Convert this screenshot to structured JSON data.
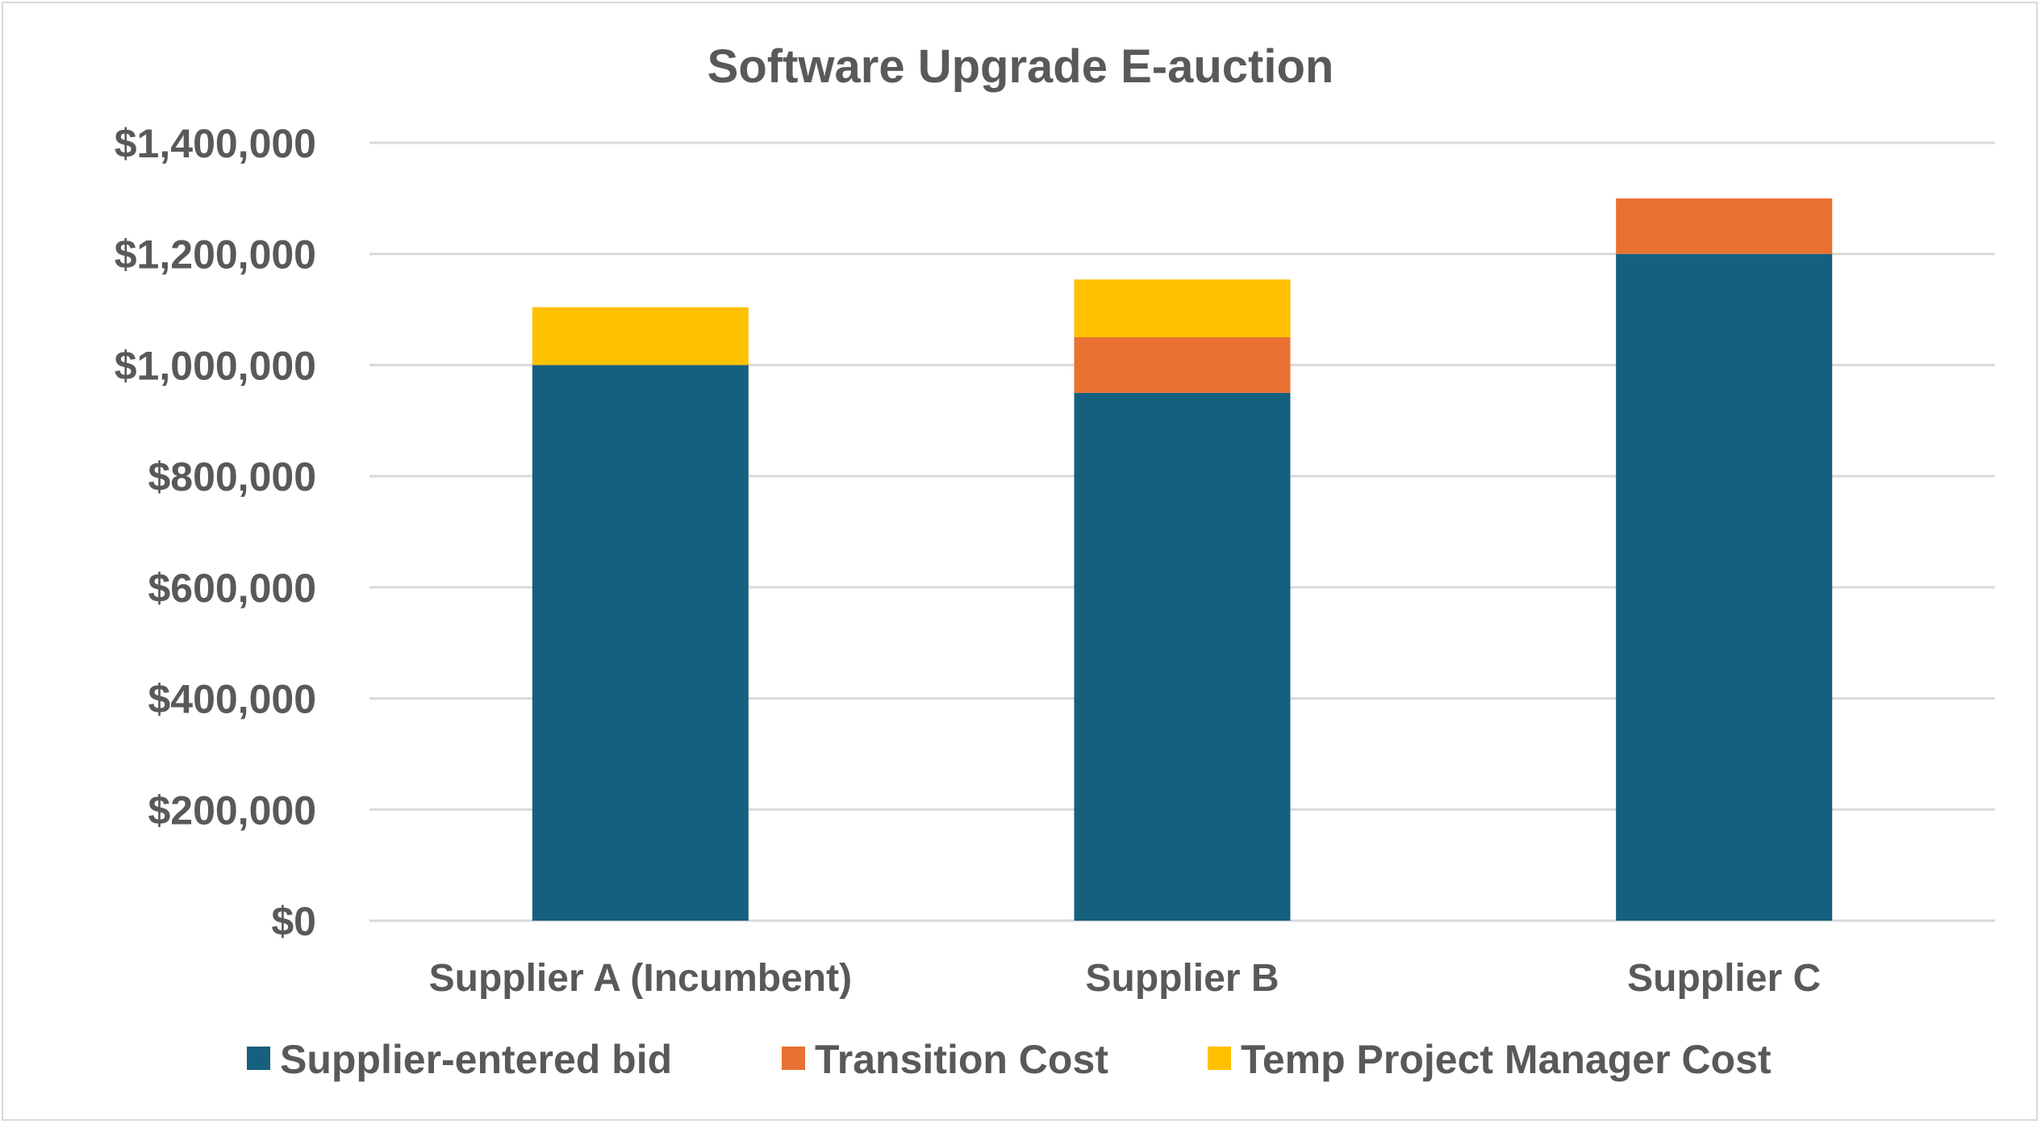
{
  "chart_data": {
    "type": "bar",
    "stacked": true,
    "title": "Software Upgrade E-auction",
    "xlabel": "",
    "ylabel": "",
    "categories": [
      "Supplier A (Incumbent)",
      "Supplier B",
      "Supplier C"
    ],
    "series": [
      {
        "name": "Supplier-entered bid",
        "color": "#16607f",
        "values": [
          1000000,
          950000,
          1200000
        ]
      },
      {
        "name": "Transition Cost",
        "color": "#e97132",
        "values": [
          0,
          100000,
          100000
        ]
      },
      {
        "name": "Temp Project Manager Cost",
        "color": "#ffc000",
        "values": [
          104000,
          104000,
          0
        ]
      }
    ],
    "ylim": [
      0,
      1400000
    ],
    "yticks": [
      0,
      200000,
      400000,
      600000,
      800000,
      1000000,
      1200000,
      1400000
    ],
    "ytick_labels": [
      "$0",
      "$200,000",
      "$400,000",
      "$600,000",
      "$800,000",
      "$1,000,000",
      "$1,200,000",
      "$1,400,000"
    ],
    "grid": true,
    "legend_position": "bottom"
  }
}
